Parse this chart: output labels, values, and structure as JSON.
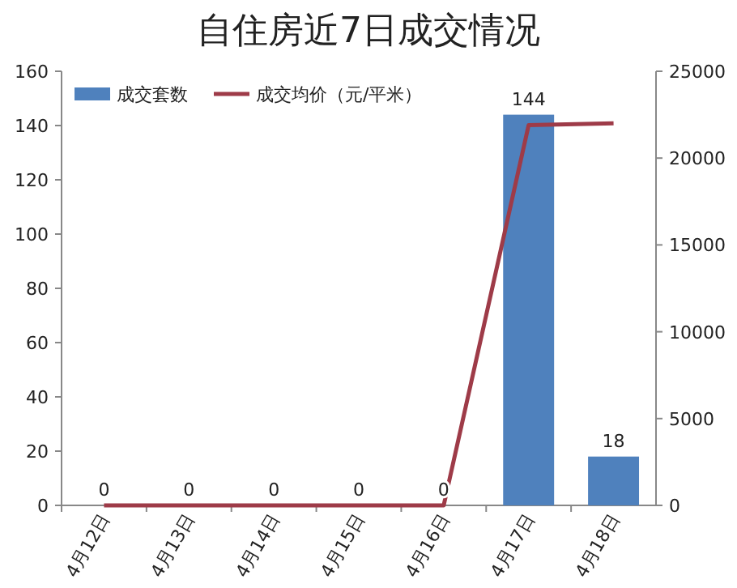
{
  "chart_data": {
    "type": "bar",
    "title": "自住房近7日成交情况",
    "categories": [
      "4月12日",
      "4月13日",
      "4月14日",
      "4月15日",
      "4月16日",
      "4月17日",
      "4月18日"
    ],
    "series": [
      {
        "name": "成交套数",
        "color": "#4f81bd",
        "values": [
          0,
          0,
          0,
          0,
          0,
          144,
          18
        ],
        "value_labels": [
          "0",
          "0",
          "0",
          "0",
          "0",
          "144",
          "18"
        ]
      },
      {
        "name": "成交均价（元/平米）",
        "type": "line",
        "axis": "y2",
        "color": "#9e3b48",
        "values": [
          0,
          0,
          0,
          0,
          0,
          21900,
          22000
        ]
      }
    ],
    "ylim": [
      0,
      160
    ],
    "yticks": [
      0,
      20,
      40,
      60,
      80,
      100,
      120,
      140,
      160
    ],
    "y2lim": [
      0,
      25000
    ],
    "y2ticks": [
      0,
      5000,
      10000,
      15000,
      20000,
      25000
    ],
    "legend": "top left"
  }
}
